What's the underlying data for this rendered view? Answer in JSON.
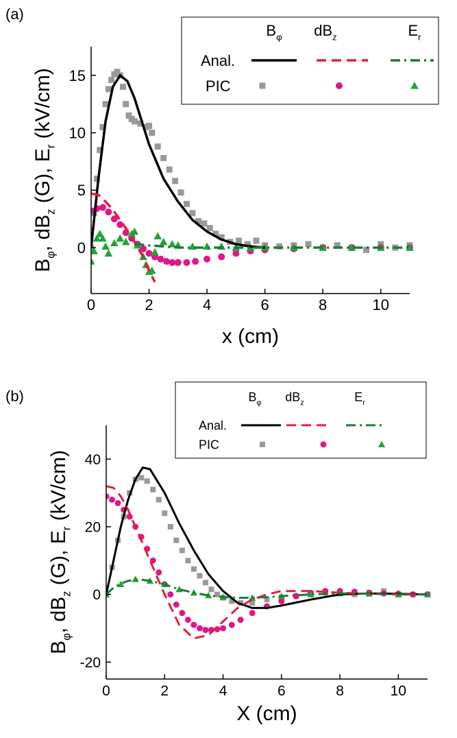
{
  "chart_data": [
    {
      "type": "scatter-line",
      "tag": "(a)",
      "xlabel": "x (cm)",
      "ylabel": [
        "B",
        "φ",
        ", dB",
        "z",
        " (G), E",
        "r",
        " (kV/cm)"
      ],
      "xlim": [
        0,
        11
      ],
      "ylim": [
        -4,
        17.5
      ],
      "xticks": [
        0,
        2,
        4,
        6,
        8,
        10
      ],
      "yticks": [
        0,
        5,
        10,
        15
      ],
      "legend": {
        "columns": [
          {
            "base": "B",
            "sub": "φ"
          },
          {
            "base": "dB",
            "sub": "z"
          },
          {
            "base": "E",
            "sub": "r"
          }
        ],
        "rows": [
          "Anal.",
          "PIC"
        ]
      },
      "series": [
        {
          "style": "line",
          "dash": "solid",
          "color": "#000000",
          "x": [
            0,
            0.25,
            0.5,
            0.75,
            1,
            1.25,
            1.5,
            2,
            2.5,
            3,
            3.5,
            4,
            4.5,
            5,
            5.5,
            6
          ],
          "values": [
            0,
            6,
            11,
            14,
            15,
            14.5,
            13,
            9,
            6,
            4,
            2.4,
            1.4,
            0.7,
            0.3,
            0.1,
            0
          ]
        },
        {
          "style": "line",
          "dash": "dashed",
          "color": "#e0203c",
          "x": [
            0,
            0.25,
            0.5,
            0.75,
            1,
            1.25,
            1.5,
            1.75,
            2,
            2.2
          ],
          "values": [
            4.7,
            4.6,
            4.0,
            3.3,
            2.4,
            1.5,
            0.5,
            -0.6,
            -2,
            -3
          ]
        },
        {
          "style": "line",
          "dash": "dashdot",
          "color": "#1a7a3a",
          "x": [
            1.5,
            2,
            3,
            4,
            5,
            6,
            7,
            8,
            9,
            10,
            11
          ],
          "values": [
            0.3,
            0.2,
            0,
            0,
            0,
            0,
            0,
            0,
            0,
            0,
            0
          ]
        },
        {
          "style": "marker",
          "marker": "square",
          "color": "#999999",
          "x": [
            0,
            0.1,
            0.2,
            0.3,
            0.4,
            0.5,
            0.6,
            0.7,
            0.8,
            0.9,
            1.0,
            1.1,
            1.2,
            1.3,
            1.4,
            1.5,
            1.7,
            1.9,
            2.0,
            2.1,
            2.3,
            2.5,
            2.7,
            2.9,
            3.1,
            3.3,
            3.5,
            3.7,
            3.9,
            4.1,
            4.3,
            4.5,
            4.8,
            5.1,
            5.4,
            5.7,
            6.0,
            6.5,
            7.0,
            7.5,
            8.0,
            8.5,
            9.0,
            9.5,
            10.0,
            10.5,
            11.0
          ],
          "values": [
            0,
            3,
            6,
            8.5,
            10.5,
            12.5,
            13.8,
            14.6,
            15.1,
            15.3,
            15.0,
            14,
            12.5,
            11.5,
            11.2,
            11.0,
            10.8,
            10.5,
            10.6,
            10,
            8.8,
            7.8,
            6.8,
            5.8,
            4.8,
            3.8,
            3.0,
            2.3,
            2.1,
            1.7,
            1.2,
            0.9,
            0.5,
            0.6,
            0.3,
            0.6,
            0.2,
            0.1,
            0.2,
            0.3,
            0,
            0.2,
            0,
            -0.2,
            0.3,
            0,
            0.2
          ]
        },
        {
          "style": "marker",
          "marker": "circle",
          "color": "#e0168a",
          "x": [
            0,
            0.2,
            0.4,
            0.6,
            0.8,
            1.0,
            1.2,
            1.4,
            1.6,
            1.8,
            2.0,
            2.2,
            2.4,
            2.6,
            2.8,
            3.0,
            3.3,
            3.6,
            4.0,
            4.5,
            5.0,
            5.5,
            6.0,
            7.0,
            8.0,
            9.0,
            10.0,
            11.0
          ],
          "values": [
            3.2,
            3.4,
            3.5,
            3.1,
            2.5,
            2.0,
            1.3,
            0.8,
            0.3,
            -0.1,
            -0.5,
            -0.8,
            -1.0,
            -1.2,
            -1.3,
            -1.3,
            -1.3,
            -1.2,
            -1.0,
            -0.8,
            -0.5,
            -0.3,
            -0.2,
            -0.1,
            0,
            0,
            0,
            0
          ]
        },
        {
          "style": "marker",
          "marker": "triangle",
          "color": "#22a33a",
          "x": [
            0,
            0.1,
            0.2,
            0.3,
            0.4,
            0.5,
            0.6,
            0.8,
            1.0,
            1.2,
            1.4,
            1.5,
            1.6,
            1.8,
            1.9,
            2.0,
            2.1,
            2.2,
            2.3,
            2.5,
            2.8,
            3.0,
            3.5,
            4,
            4.5,
            5,
            5.5,
            6,
            7,
            8,
            9,
            10,
            11
          ],
          "values": [
            -1.2,
            -0.3,
            0.8,
            1.2,
            0.8,
            0.1,
            -0.5,
            0.4,
            0.8,
            0.5,
            1.2,
            1.4,
            0.2,
            -0.8,
            -1.5,
            -2.1,
            -2.0,
            -0.4,
            1.0,
            0.5,
            0.3,
            0.2,
            0.1,
            0.1,
            0.1,
            0,
            0,
            0,
            0,
            0,
            0,
            0,
            0
          ]
        }
      ]
    },
    {
      "type": "scatter-line",
      "tag": "(b)",
      "xlabel": "X (cm)",
      "ylabel": [
        "B",
        "φ",
        ", dB",
        "z",
        " (G), E",
        "r",
        " (kV/cm)"
      ],
      "xlim": [
        0,
        11
      ],
      "ylim": [
        -25,
        50
      ],
      "xticks": [
        0,
        2,
        4,
        6,
        8,
        10
      ],
      "yticks": [
        -20,
        0,
        20,
        40
      ],
      "legend": {
        "columns": [
          {
            "base": "B",
            "sub": "φ"
          },
          {
            "base": "dB",
            "sub": "z"
          },
          {
            "base": "E",
            "sub": "r"
          }
        ],
        "rows": [
          "Anal.",
          "PIC"
        ]
      },
      "series": [
        {
          "style": "line",
          "dash": "solid",
          "color": "#000000",
          "x": [
            0,
            0.25,
            0.5,
            0.75,
            1,
            1.25,
            1.5,
            2,
            2.5,
            3,
            3.5,
            4,
            4.5,
            5,
            5.5,
            6,
            7,
            8,
            9,
            10,
            11
          ],
          "values": [
            0,
            10,
            20,
            28,
            34,
            37.5,
            37,
            30,
            21,
            13,
            6,
            1,
            -2.5,
            -4,
            -4,
            -3.3,
            -1.5,
            0,
            0.3,
            0.2,
            0
          ]
        },
        {
          "style": "line",
          "dash": "dashed",
          "color": "#e0203c",
          "x": [
            0,
            0.25,
            0.5,
            0.75,
            1,
            1.25,
            1.5,
            2,
            2.5,
            3,
            3.5,
            4,
            4.5,
            5,
            5.5,
            6,
            7,
            8,
            9,
            10,
            11
          ],
          "values": [
            32,
            31.5,
            29,
            25,
            20,
            15,
            10,
            0,
            -9,
            -13,
            -12,
            -8,
            -4,
            -1.5,
            0,
            1,
            1,
            0.5,
            0.2,
            0,
            0
          ]
        },
        {
          "style": "line",
          "dash": "dashdot",
          "color": "#1a7a3a",
          "x": [
            0,
            0.25,
            0.5,
            0.75,
            1,
            1.25,
            1.5,
            2,
            2.5,
            3,
            3.5,
            4,
            4.5,
            5,
            5.5,
            6,
            7,
            8,
            9,
            10,
            11
          ],
          "values": [
            0,
            2,
            3.2,
            4,
            4.3,
            4.3,
            4,
            3,
            1.5,
            0.5,
            -0.3,
            -0.8,
            -1,
            -1,
            -0.8,
            -0.5,
            0,
            0.3,
            0.2,
            0,
            0
          ]
        },
        {
          "style": "marker",
          "marker": "square",
          "color": "#999999",
          "x": [
            0,
            0.2,
            0.4,
            0.6,
            0.8,
            1.0,
            1.2,
            1.4,
            1.6,
            1.8,
            2.0,
            2.2,
            2.4,
            2.6,
            2.8,
            3.0,
            3.2,
            3.4,
            3.6,
            3.8,
            4.0,
            4.3,
            4.6,
            5.0,
            5.5,
            6.0,
            6.5,
            7.0,
            7.5,
            8.0,
            8.5,
            9.0,
            9.5,
            10,
            10.5,
            11
          ],
          "values": [
            0,
            8,
            16,
            23,
            30,
            34,
            34.5,
            33.5,
            31,
            28,
            24,
            20,
            16,
            13,
            10,
            7.5,
            5.5,
            3.5,
            1.5,
            0,
            -1,
            -2,
            -2.5,
            -2.5,
            -1.5,
            -1,
            -0.5,
            0,
            0.5,
            0.5,
            0,
            0.5,
            1,
            0,
            0,
            0
          ]
        },
        {
          "style": "marker",
          "marker": "circle",
          "color": "#e0168a",
          "x": [
            0,
            0.2,
            0.4,
            0.6,
            0.8,
            1.0,
            1.2,
            1.4,
            1.6,
            1.8,
            2.0,
            2.2,
            2.4,
            2.6,
            2.8,
            3.0,
            3.2,
            3.4,
            3.6,
            3.8,
            4.0,
            4.3,
            4.6,
            5.0,
            5.5,
            6.0,
            6.5,
            7.0,
            7.5,
            8.0,
            8.5,
            9.0,
            9.5,
            10,
            10.5,
            11
          ],
          "values": [
            29,
            28,
            27,
            25,
            23,
            20,
            17,
            13.5,
            10,
            6.5,
            3,
            0,
            -3,
            -5.5,
            -7.5,
            -9,
            -10,
            -10.5,
            -10.5,
            -10.3,
            -10,
            -9,
            -7.5,
            -5.5,
            -3.5,
            -2,
            -0.5,
            0.5,
            1,
            1,
            0.8,
            0.5,
            0.3,
            0.2,
            0,
            0
          ]
        },
        {
          "style": "marker",
          "marker": "triangle",
          "color": "#22a33a",
          "x": [
            0,
            0.5,
            1,
            1.5,
            2,
            2.5,
            3,
            3.5,
            4,
            5,
            6,
            7,
            8,
            9,
            10,
            11
          ],
          "values": [
            0,
            3,
            4.5,
            4,
            3,
            1.5,
            0.5,
            -0.3,
            -0.8,
            -1,
            -0.5,
            0,
            0.3,
            0.2,
            0,
            0
          ]
        }
      ]
    }
  ]
}
